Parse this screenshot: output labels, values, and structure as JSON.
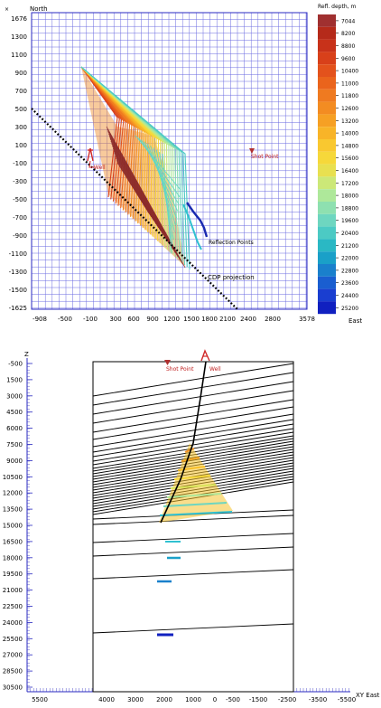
{
  "map_panel": {
    "axis_north_label": "North",
    "axis_east_label": "East",
    "y_ticks": [
      "1676",
      "1300",
      "1100",
      "900",
      "700",
      "500",
      "300",
      "100",
      "-100",
      "-300",
      "-500",
      "-700",
      "-900",
      "-1100",
      "-1300",
      "-1500",
      "-1625"
    ],
    "x_ticks": [
      "-908",
      "-500",
      "-100",
      "300",
      "600",
      "900",
      "1200",
      "1500",
      "1800",
      "2100",
      "2400",
      "2800",
      "3578"
    ],
    "labels": {
      "well": "Well",
      "shot_point": "Shot Point",
      "reflection_points": "Reflection Points",
      "cdp_projection": "CDP projection"
    },
    "colorbar": {
      "title": "Refl. depth, m",
      "values": [
        "7044",
        "8200",
        "8800",
        "9600",
        "10400",
        "11000",
        "11800",
        "12600",
        "13200",
        "14000",
        "14800",
        "15600",
        "16400",
        "17200",
        "18000",
        "18800",
        "19600",
        "20400",
        "21200",
        "22000",
        "22800",
        "23600",
        "24400",
        "25200"
      ],
      "colors": [
        "#a03030",
        "#b52a1a",
        "#c8321a",
        "#d8401a",
        "#e3521c",
        "#ea641c",
        "#ef7a20",
        "#f38c22",
        "#f6a024",
        "#f8b428",
        "#f9c830",
        "#f6d83a",
        "#e8e050",
        "#cce878",
        "#aee89a",
        "#8ee0b0",
        "#6ed6c0",
        "#4ccac4",
        "#2ab8c4",
        "#1aa0c8",
        "#1a80cc",
        "#1a5ed0",
        "#1a3ed0",
        "#1020c0"
      ]
    },
    "accent_colors": {
      "ray_dark": "#8a2a2a",
      "ray_orange": "#ee7a1c",
      "ray_yellow": "#f6c22c",
      "ray_cyan": "#62d6c6",
      "reflection_blue": "#1a2ab0",
      "reflection_cyan": "#30c0d0",
      "shot_marker": "#b03030",
      "well_marker": "#d02828"
    }
  },
  "section_panel": {
    "axis_z_label": "Z",
    "axis_xy_label": "XY East",
    "z_ticks": [
      "-500",
      "1500",
      "3000",
      "4500",
      "6000",
      "7500",
      "9000",
      "10500",
      "12000",
      "13500",
      "15000",
      "16500",
      "18000",
      "19500",
      "21000",
      "22500",
      "24000",
      "25500",
      "27000",
      "28500",
      "30500"
    ],
    "xy_ticks": [
      "5500",
      "4000",
      "3000",
      "2000",
      "1000",
      "0",
      "-500",
      "-1500",
      "-2500",
      "-3500",
      "-5500"
    ],
    "labels": {
      "shot_point": "Shot Point",
      "well": "Well"
    }
  }
}
